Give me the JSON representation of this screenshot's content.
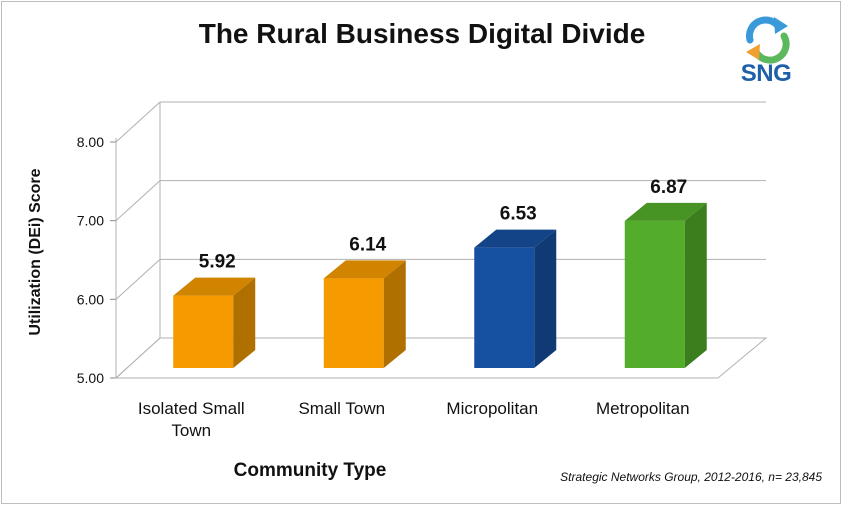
{
  "chart_data": {
    "type": "bar",
    "title": "The Rural Business Digital Divide",
    "xlabel": "Community Type",
    "ylabel": "Utilization (DEi) Score",
    "categories": [
      [
        "Isolated Small",
        "Town"
      ],
      [
        "Small Town"
      ],
      [
        "Micropolitan"
      ],
      [
        "Metropolitan"
      ]
    ],
    "values": [
      5.92,
      6.14,
      6.53,
      6.87
    ],
    "data_labels": [
      "5.92",
      "6.14",
      "6.53",
      "6.87"
    ],
    "colors": [
      "#f59b00",
      "#f59b00",
      "#1650a0",
      "#53ad2a"
    ],
    "ylim": [
      5.0,
      8.0
    ],
    "yticks": [
      "5.00",
      "6.00",
      "7.00",
      "8.00"
    ],
    "grid": true,
    "legend": "none",
    "style": "3d-column"
  },
  "source_note": "Strategic Networks Group, 2012-2016, n= 23,845",
  "logo": {
    "text": "SNG",
    "icon": "recycle-arrows-icon",
    "colors": [
      "#3a9ad9",
      "#5cb85c",
      "#f0a030"
    ]
  }
}
